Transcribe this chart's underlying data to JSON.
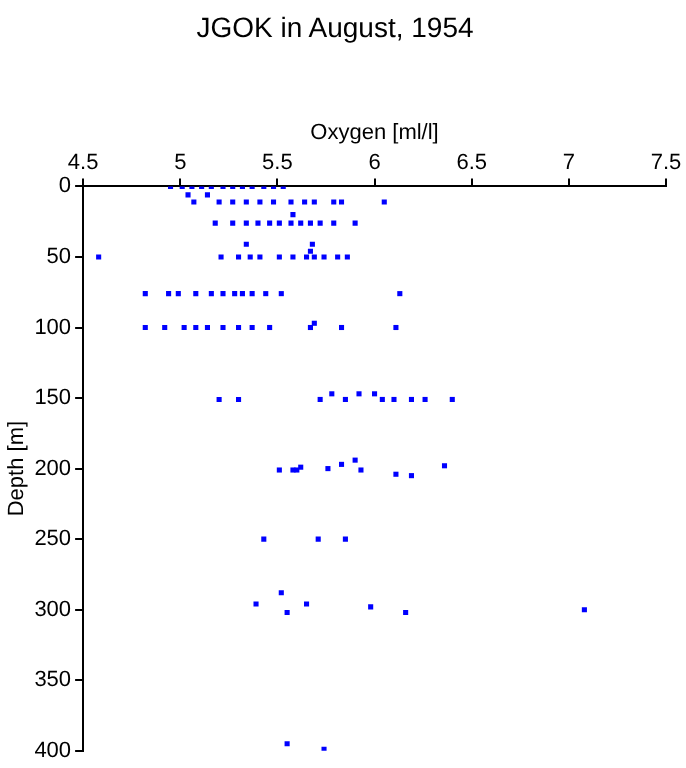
{
  "chart_data": {
    "type": "scatter",
    "title": "JGOK in August, 1954",
    "xlabel": "Oxygen [ml/l]",
    "ylabel": "Depth [m]",
    "x": [
      4.95,
      5.01,
      5.06,
      5.11,
      5.16,
      5.22,
      5.27,
      5.32,
      5.37,
      5.43,
      5.48,
      5.53,
      5.04,
      5.14,
      5.07,
      5.2,
      5.27,
      5.34,
      5.41,
      5.48,
      5.57,
      5.64,
      5.69,
      5.79,
      5.83,
      6.05,
      5.58,
      5.18,
      5.27,
      5.34,
      5.4,
      5.46,
      5.51,
      5.57,
      5.62,
      5.67,
      5.72,
      5.79,
      5.9,
      5.34,
      5.68,
      5.67,
      4.58,
      5.21,
      5.3,
      5.36,
      5.41,
      5.51,
      5.58,
      5.65,
      5.69,
      5.74,
      5.81,
      5.86,
      4.82,
      4.94,
      4.99,
      5.08,
      5.16,
      5.22,
      5.28,
      5.32,
      5.37,
      5.44,
      5.52,
      6.13,
      4.82,
      4.92,
      5.02,
      5.08,
      5.14,
      5.22,
      5.3,
      5.37,
      5.46,
      5.67,
      5.69,
      5.83,
      6.11,
      5.2,
      5.3,
      5.72,
      5.78,
      5.85,
      5.92,
      6,
      6.04,
      6.1,
      6.19,
      6.26,
      6.4,
      5.51,
      5.58,
      5.6,
      5.62,
      5.76,
      5.83,
      5.9,
      5.93,
      6.11,
      6.19,
      6.36,
      5.43,
      5.71,
      5.85,
      5.52,
      5.39,
      5.65,
      5.98,
      5.55,
      6.16,
      7.08,
      5.55,
      5.74
    ],
    "values": [
      0,
      0,
      0,
      0,
      0,
      0,
      0,
      0,
      0,
      0,
      0,
      0,
      6,
      6,
      11,
      11,
      11,
      11,
      11,
      11,
      11,
      11,
      11,
      11,
      11,
      11,
      20,
      26,
      26,
      26,
      26,
      26,
      26,
      26,
      26,
      26,
      26,
      26,
      26,
      41,
      41,
      46,
      50,
      50,
      50,
      50,
      50,
      50,
      50,
      50,
      50,
      50,
      50,
      50,
      76,
      76,
      76,
      76,
      76,
      76,
      76,
      76,
      76,
      76,
      76,
      76,
      100,
      100,
      100,
      100,
      100,
      100,
      100,
      100,
      100,
      100,
      97,
      100,
      100,
      151,
      151,
      151,
      147,
      151,
      147,
      147,
      151,
      151,
      151,
      151,
      151,
      201,
      201,
      201,
      199,
      200,
      197,
      194,
      201,
      204,
      205,
      198,
      250,
      250,
      250,
      288,
      296,
      296,
      298,
      302,
      302,
      300,
      395,
      399
    ],
    "color": "#0000ff",
    "marker": "square",
    "grid": false,
    "legend": false,
    "xlim": [
      4.5,
      7.5
    ],
    "xticks": [
      4.5,
      5,
      5.5,
      6,
      6.5,
      7,
      7.5
    ],
    "ylim": [
      400,
      0
    ],
    "yticks": [
      0,
      50,
      100,
      150,
      200,
      250,
      300,
      350,
      400
    ]
  }
}
